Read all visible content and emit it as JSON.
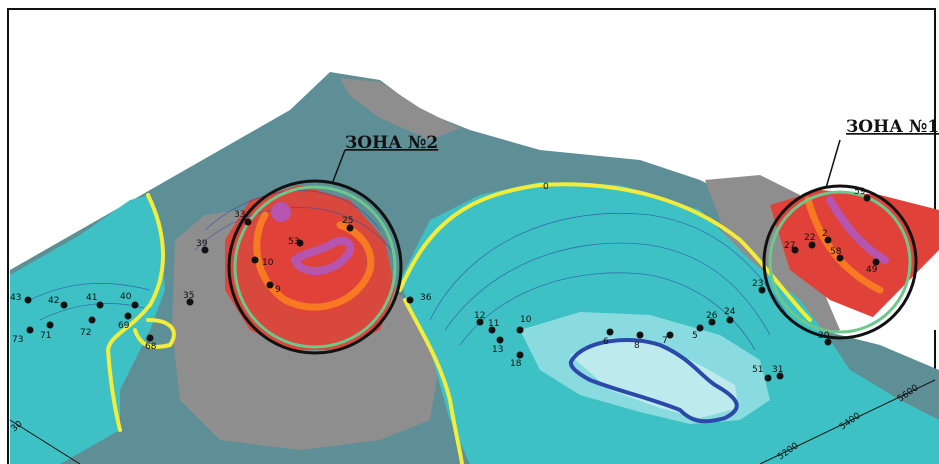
{
  "zones": [
    {
      "label": "ЗОНА №2"
    },
    {
      "label": "ЗОНА №1"
    }
  ],
  "contour_zero_label": "0",
  "wells": [
    {
      "label": "43"
    },
    {
      "label": "42"
    },
    {
      "label": "41"
    },
    {
      "label": "40"
    },
    {
      "label": "73"
    },
    {
      "label": "71"
    },
    {
      "label": "72"
    },
    {
      "label": "69"
    },
    {
      "label": "68"
    },
    {
      "label": "35"
    },
    {
      "label": "39"
    },
    {
      "label": "33"
    },
    {
      "label": "25"
    },
    {
      "label": "53"
    },
    {
      "label": "10"
    },
    {
      "label": "9"
    },
    {
      "label": "36"
    },
    {
      "label": "12"
    },
    {
      "label": "11"
    },
    {
      "label": "10"
    },
    {
      "label": "13"
    },
    {
      "label": "18"
    },
    {
      "label": "6"
    },
    {
      "label": "8"
    },
    {
      "label": "7"
    },
    {
      "label": "5"
    },
    {
      "label": "26"
    },
    {
      "label": "24"
    },
    {
      "label": "51"
    },
    {
      "label": "31"
    },
    {
      "label": "30"
    },
    {
      "label": "27"
    },
    {
      "label": "22"
    },
    {
      "label": "2"
    },
    {
      "label": "58"
    },
    {
      "label": "49"
    },
    {
      "label": "23"
    },
    {
      "label": "59"
    }
  ],
  "axis_labels": [
    {
      "label": "5200"
    },
    {
      "label": "5400"
    },
    {
      "label": "5600"
    },
    {
      "label": "30"
    }
  ],
  "colors": {
    "background_surface": "#5f8f96",
    "low_area": "#3ec1c4",
    "depression": "#8adbe0",
    "grey_zone": "#8e8e8e",
    "high_red": "#e0423a",
    "zero_contour": "#f2ec3a",
    "orange_contour": "#f77a22",
    "purple_contour": "#b655b0",
    "blue_contour": "#2a49a8",
    "zone_circle": "#6cc88a"
  }
}
